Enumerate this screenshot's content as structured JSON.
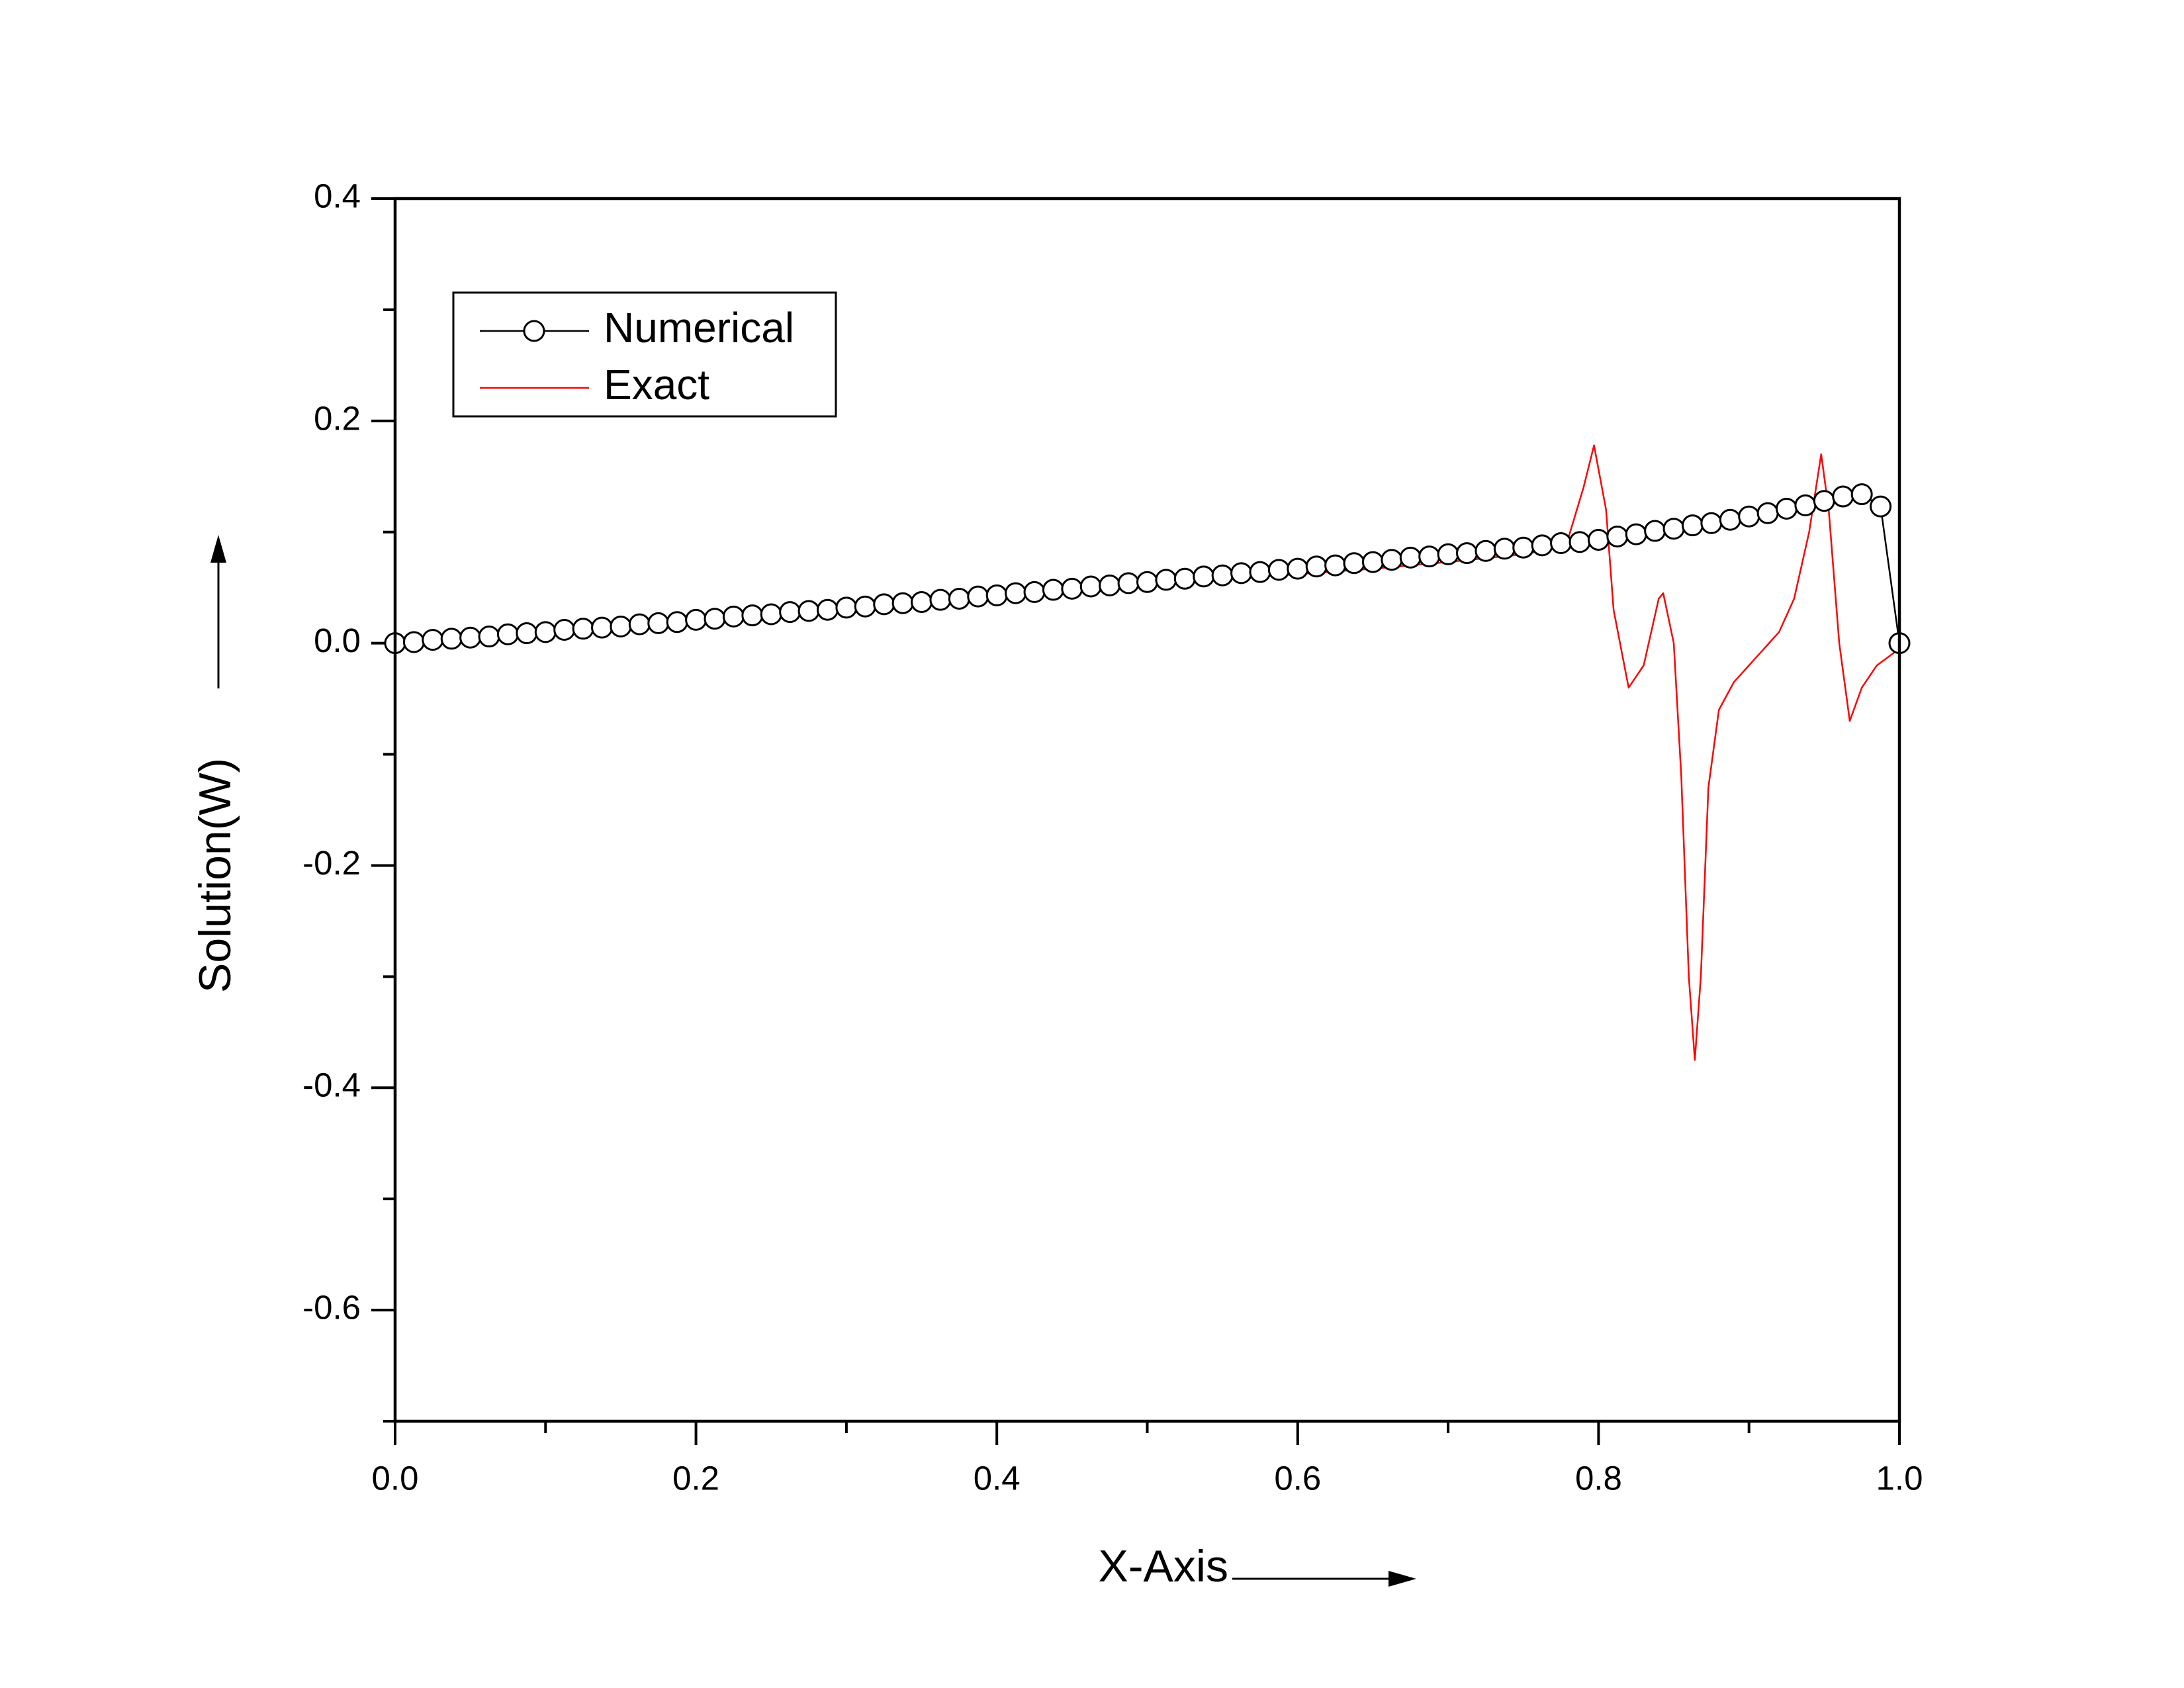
{
  "chart_data": {
    "type": "line",
    "x_label": "X-Axis",
    "y_label": "Solution(W)",
    "xlim": [
      0,
      1
    ],
    "ylim": [
      -0.7,
      0.4
    ],
    "xticks": [
      {
        "value": 0,
        "label": "0.0"
      },
      {
        "value": 0.2,
        "label": "0.2"
      },
      {
        "value": 0.4,
        "label": "0.4"
      },
      {
        "value": 0.6,
        "label": "0.6"
      },
      {
        "value": 0.8,
        "label": "0.8"
      },
      {
        "value": 1,
        "label": "1.0"
      }
    ],
    "yticks": [
      {
        "value": -0.6,
        "label": "-0.6"
      },
      {
        "value": -0.4,
        "label": "-0.4"
      },
      {
        "value": -0.2,
        "label": "-0.2"
      },
      {
        "value": 0,
        "label": "0.0"
      },
      {
        "value": 0.2,
        "label": "0.2"
      },
      {
        "value": 0.4,
        "label": "0.4"
      }
    ],
    "xminorticks": [
      0.1,
      0.3,
      0.5,
      0.7,
      0.9
    ],
    "yminorticks": [
      -0.7,
      -0.5,
      -0.3,
      -0.1,
      0.1,
      0.3
    ],
    "grid": false,
    "legend": "upper left",
    "series": [
      {
        "name": "Numerical",
        "color": "#000000",
        "marker": "circle",
        "x": [
          0,
          0.0125,
          0.025,
          0.0375,
          0.05,
          0.0625,
          0.075,
          0.0875,
          0.1,
          0.1125,
          0.125,
          0.1375,
          0.15,
          0.1625,
          0.175,
          0.1875,
          0.2,
          0.2125,
          0.225,
          0.2375,
          0.25,
          0.2625,
          0.275,
          0.2875,
          0.3,
          0.3125,
          0.325,
          0.3375,
          0.35,
          0.3625,
          0.375,
          0.3875,
          0.4,
          0.4125,
          0.425,
          0.4375,
          0.45,
          0.4625,
          0.475,
          0.4875,
          0.5,
          0.5125,
          0.525,
          0.5375,
          0.55,
          0.5625,
          0.575,
          0.5875,
          0.6,
          0.6125,
          0.625,
          0.6375,
          0.65,
          0.6625,
          0.675,
          0.6875,
          0.7,
          0.7125,
          0.725,
          0.7375,
          0.75,
          0.7625,
          0.775,
          0.7875,
          0.8,
          0.8125,
          0.825,
          0.8375,
          0.85,
          0.8625,
          0.875,
          0.8875,
          0.9,
          0.9125,
          0.925,
          0.9375,
          0.95,
          0.9625,
          0.975,
          0.9875,
          1.0
        ],
        "values": [
          0,
          0.001,
          0.003,
          0.004,
          0.005,
          0.006,
          0.008,
          0.009,
          0.01,
          0.012,
          0.013,
          0.014,
          0.015,
          0.017,
          0.018,
          0.019,
          0.021,
          0.022,
          0.024,
          0.025,
          0.026,
          0.028,
          0.029,
          0.03,
          0.032,
          0.033,
          0.035,
          0.036,
          0.037,
          0.039,
          0.04,
          0.042,
          0.043,
          0.045,
          0.046,
          0.048,
          0.049,
          0.051,
          0.052,
          0.054,
          0.055,
          0.057,
          0.058,
          0.06,
          0.061,
          0.063,
          0.064,
          0.066,
          0.067,
          0.069,
          0.07,
          0.072,
          0.073,
          0.075,
          0.077,
          0.078,
          0.08,
          0.081,
          0.083,
          0.085,
          0.086,
          0.088,
          0.09,
          0.091,
          0.093,
          0.096,
          0.098,
          0.101,
          0.103,
          0.106,
          0.108,
          0.111,
          0.114,
          0.117,
          0.121,
          0.124,
          0.128,
          0.132,
          0.134,
          0.123,
          0
        ]
      },
      {
        "name": "Exact",
        "color": "#ff0000",
        "x": [
          0,
          0.05,
          0.1,
          0.15,
          0.2,
          0.25,
          0.3,
          0.35,
          0.4,
          0.45,
          0.5,
          0.55,
          0.6,
          0.65,
          0.7,
          0.75,
          0.77,
          0.78,
          0.79,
          0.797,
          0.805,
          0.81,
          0.82,
          0.83,
          0.84,
          0.843,
          0.85,
          0.855,
          0.86,
          0.864,
          0.868,
          0.873,
          0.88,
          0.89,
          0.9,
          0.92,
          0.93,
          0.94,
          0.948,
          0.953,
          0.96,
          0.967,
          0.975,
          0.985,
          1.0
        ],
        "values": [
          0,
          0.005,
          0.01,
          0.016,
          0.021,
          0.026,
          0.032,
          0.037,
          0.043,
          0.048,
          0.053,
          0.058,
          0.062,
          0.067,
          0.073,
          0.08,
          0.085,
          0.095,
          0.14,
          0.178,
          0.12,
          0.03,
          -0.04,
          -0.02,
          0.04,
          0.045,
          0.0,
          -0.12,
          -0.3,
          -0.375,
          -0.3,
          -0.13,
          -0.06,
          -0.035,
          -0.02,
          0.01,
          0.04,
          0.1,
          0.17,
          0.12,
          0.0,
          -0.07,
          -0.04,
          -0.02,
          -0.005
        ]
      }
    ]
  }
}
